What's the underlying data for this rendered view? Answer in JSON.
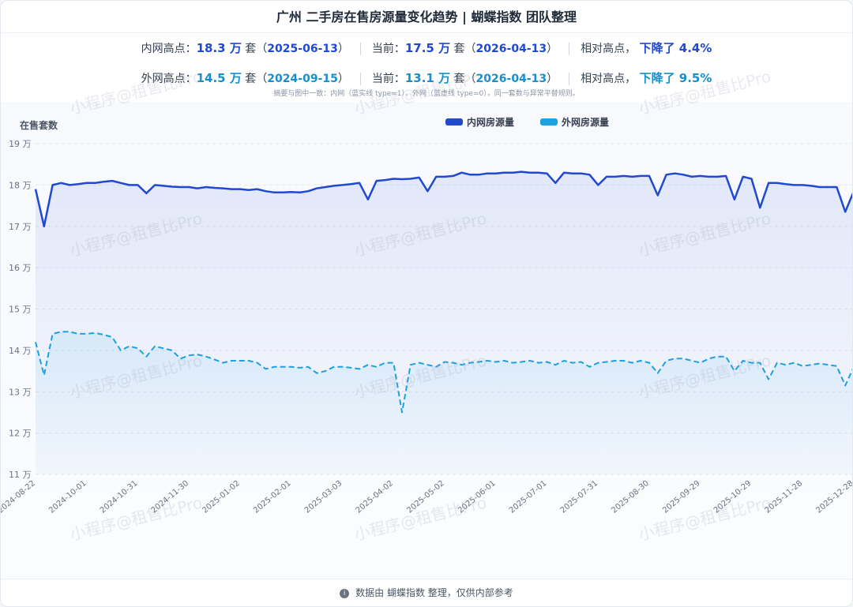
{
  "header": {
    "title": "广州 二手房在售房源量变化趋势 | 蝴蝶指数 团队整理"
  },
  "summary": [
    {
      "high_label": "内网高点：",
      "high_value": "18.3 万",
      "high_unit": "套（",
      "high_date": "2025-06-13",
      "high_close": "）",
      "cur_label": "当前：",
      "cur_value": "17.5 万",
      "cur_unit": "套（",
      "cur_date": "2026-04-13",
      "cur_close": "）",
      "rel_label": "相对高点，",
      "rel_value": "下降了 4.4%"
    },
    {
      "high_label": "外网高点：",
      "high_value": "14.5 万",
      "high_unit": "套（",
      "high_date": "2024-09-15",
      "high_close": "）",
      "cur_label": "当前：",
      "cur_value": "13.1 万",
      "cur_unit": "套（",
      "cur_date": "2026-04-13",
      "cur_close": "）",
      "rel_label": "相对高点，",
      "rel_value": "下降了 9.5%"
    }
  ],
  "note": "摘要与图中一致：内网（蓝实线 type=1）、外网（蓝虚线 type=0），同一套数与异常平替规则。",
  "watermark": "小程序@租售比Pro",
  "footer": "数据由 蝴蝶指数 整理，仅供内部参考",
  "chart_data": {
    "type": "line",
    "y_label": "在售套数",
    "legend": "top",
    "grid": true,
    "categories": [
      "2024-08-22",
      null,
      null,
      null,
      null,
      null,
      "2024-10-01",
      null,
      null,
      null,
      null,
      null,
      "2024-10-31",
      null,
      null,
      null,
      null,
      null,
      "2024-11-30",
      null,
      null,
      null,
      null,
      null,
      "2025-01-02",
      null,
      null,
      null,
      null,
      null,
      "2025-02-01",
      null,
      null,
      null,
      null,
      null,
      "2025-03-03",
      null,
      null,
      null,
      null,
      null,
      "2025-04-02",
      null,
      null,
      null,
      null,
      null,
      "2025-05-02",
      null,
      null,
      null,
      null,
      null,
      "2025-06-01",
      null,
      null,
      null,
      null,
      null,
      "2025-07-01",
      null,
      null,
      null,
      null,
      null,
      "2025-07-31",
      null,
      null,
      null,
      null,
      null,
      "2025-08-30",
      null,
      null,
      null,
      null,
      null,
      "2025-09-29",
      null,
      null,
      null,
      null,
      null,
      "2025-10-29",
      null,
      null,
      null,
      null,
      null,
      "2025-11-28",
      null,
      null,
      null,
      null,
      null,
      "2025-12-28"
    ],
    "series": [
      {
        "name": "内网房源量",
        "color": "#2049d0",
        "dashed": false,
        "values": [
          17.9,
          17.0,
          18.0,
          18.05,
          18.0,
          18.02,
          18.05,
          18.05,
          18.08,
          18.1,
          18.05,
          18.0,
          18.0,
          17.8,
          18.0,
          17.98,
          17.96,
          17.95,
          17.95,
          17.92,
          17.95,
          17.93,
          17.92,
          17.9,
          17.9,
          17.88,
          17.9,
          17.85,
          17.82,
          17.82,
          17.83,
          17.82,
          17.85,
          17.92,
          17.95,
          17.98,
          18.0,
          18.02,
          18.05,
          17.65,
          18.1,
          18.12,
          18.15,
          18.14,
          18.15,
          18.18,
          17.85,
          18.2,
          18.2,
          18.22,
          18.3,
          18.25,
          18.25,
          18.28,
          18.28,
          18.3,
          18.3,
          18.32,
          18.3,
          18.3,
          18.28,
          18.05,
          18.3,
          18.28,
          18.28,
          18.25,
          18.0,
          18.2,
          18.2,
          18.22,
          18.2,
          18.22,
          18.22,
          17.75,
          18.25,
          18.28,
          18.25,
          18.2,
          18.22,
          18.2,
          18.2,
          18.22,
          17.65,
          18.2,
          18.15,
          17.45,
          18.05,
          18.05,
          18.02,
          18.0,
          18.0,
          17.98,
          17.95,
          17.95,
          17.95,
          17.35,
          17.85
        ]
      },
      {
        "name": "外网房源量",
        "color": "#1da1e0",
        "dashed": true,
        "values": [
          14.2,
          13.4,
          14.4,
          14.45,
          14.45,
          14.4,
          14.4,
          14.42,
          14.38,
          14.32,
          14.0,
          14.1,
          14.05,
          13.85,
          14.1,
          14.05,
          14.0,
          13.8,
          13.88,
          13.9,
          13.85,
          13.78,
          13.7,
          13.75,
          13.75,
          13.75,
          13.7,
          13.55,
          13.6,
          13.6,
          13.6,
          13.58,
          13.6,
          13.45,
          13.5,
          13.6,
          13.6,
          13.58,
          13.55,
          13.65,
          13.6,
          13.7,
          13.7,
          12.5,
          13.65,
          13.7,
          13.65,
          13.6,
          13.72,
          13.7,
          13.65,
          13.7,
          13.72,
          13.75,
          13.72,
          13.75,
          13.7,
          13.72,
          13.75,
          13.7,
          13.72,
          13.65,
          13.75,
          13.7,
          13.72,
          13.6,
          13.7,
          13.72,
          13.75,
          13.75,
          13.7,
          13.75,
          13.7,
          13.45,
          13.75,
          13.8,
          13.8,
          13.75,
          13.7,
          13.8,
          13.85,
          13.85,
          13.5,
          13.75,
          13.7,
          13.7,
          13.3,
          13.7,
          13.65,
          13.7,
          13.62,
          13.65,
          13.68,
          13.65,
          13.62,
          13.15,
          13.6
        ]
      }
    ],
    "ylim": [
      11,
      19
    ],
    "yticks": [
      {
        "value": 11,
        "label": "11 万"
      },
      {
        "value": 12,
        "label": "12 万"
      },
      {
        "value": 13,
        "label": "13 万"
      },
      {
        "value": 14,
        "label": "14 万"
      },
      {
        "value": 15,
        "label": "15 万"
      },
      {
        "value": 16,
        "label": "16 万"
      },
      {
        "value": 17,
        "label": "17 万"
      },
      {
        "value": 18,
        "label": "18 万"
      },
      {
        "value": 19,
        "label": "19 万"
      }
    ]
  }
}
